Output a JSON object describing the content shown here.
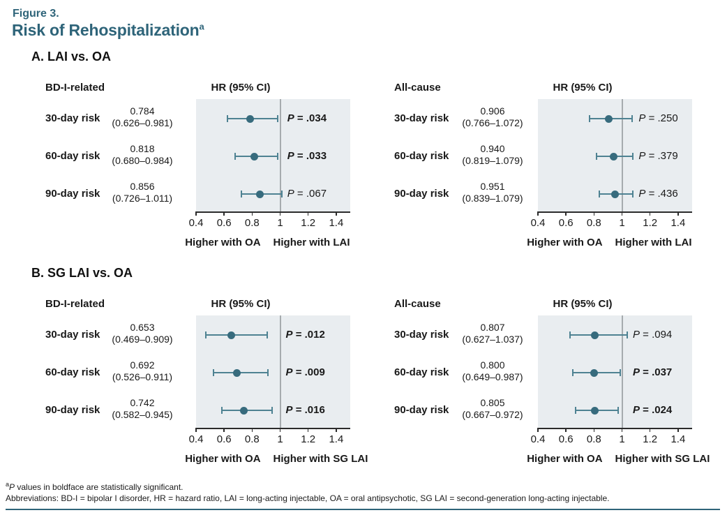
{
  "header": {
    "figure_label": "Figure 3.",
    "title": "Risk of Rehospitalization",
    "title_superscript": "a"
  },
  "colors": {
    "accent_teal": "#2e6479",
    "marker_dot": "#376b7d",
    "ci_line": "#4e8292",
    "plot_background": "#e9edf0",
    "reference_line": "#a6abae",
    "axis": "#2b2b2b",
    "text": "#191919"
  },
  "chart_data": {
    "type": "forest",
    "hr_header": "HR (95% CI)",
    "axis": {
      "domain": [
        0.4,
        1.5
      ],
      "tick_values": [
        0.4,
        0.6,
        0.8,
        1,
        1.2,
        1.4
      ],
      "tick_labels": [
        "0.4",
        "0.6",
        "0.8",
        "1",
        "1.2",
        "1.4"
      ],
      "ref_value": 1
    },
    "panels": [
      {
        "id": "A",
        "heading": "A. LAI vs. OA",
        "direction_left": "Higher with OA",
        "direction_right": "Higher with LAI",
        "groups": [
          {
            "outcome": "BD-I-related",
            "rows": [
              {
                "label": "30-day risk",
                "estimate": "0.784",
                "ci": "(0.626–0.981)",
                "hr": 0.784,
                "lo": 0.626,
                "hi": 0.981,
                "p": "P = .034",
                "significant": true
              },
              {
                "label": "60-day risk",
                "estimate": "0.818",
                "ci": "(0.680–0.984)",
                "hr": 0.818,
                "lo": 0.68,
                "hi": 0.984,
                "p": "P = .033",
                "significant": true
              },
              {
                "label": "90-day risk",
                "estimate": "0.856",
                "ci": "(0.726–1.011)",
                "hr": 0.856,
                "lo": 0.726,
                "hi": 1.011,
                "p": "P = .067",
                "significant": false
              }
            ]
          },
          {
            "outcome": "All-cause",
            "rows": [
              {
                "label": "30-day risk",
                "estimate": "0.906",
                "ci": "(0.766–1.072)",
                "hr": 0.906,
                "lo": 0.766,
                "hi": 1.072,
                "p": "P = .250",
                "significant": false
              },
              {
                "label": "60-day risk",
                "estimate": "0.940",
                "ci": "(0.819–1.079)",
                "hr": 0.94,
                "lo": 0.819,
                "hi": 1.079,
                "p": "P = .379",
                "significant": false
              },
              {
                "label": "90-day risk",
                "estimate": "0.951",
                "ci": "(0.839–1.079)",
                "hr": 0.951,
                "lo": 0.839,
                "hi": 1.079,
                "p": "P = .436",
                "significant": false
              }
            ]
          }
        ]
      },
      {
        "id": "B",
        "heading": "B. SG LAI vs. OA",
        "direction_left": "Higher with OA",
        "direction_right": "Higher with SG LAI",
        "groups": [
          {
            "outcome": "BD-I-related",
            "rows": [
              {
                "label": "30-day risk",
                "estimate": "0.653",
                "ci": "(0.469–0.909)",
                "hr": 0.653,
                "lo": 0.469,
                "hi": 0.909,
                "p": "P = .012",
                "significant": true
              },
              {
                "label": "60-day risk",
                "estimate": "0.692",
                "ci": "(0.526–0.911)",
                "hr": 0.692,
                "lo": 0.526,
                "hi": 0.911,
                "p": "P = .009",
                "significant": true
              },
              {
                "label": "90-day risk",
                "estimate": "0.742",
                "ci": "(0.582–0.945)",
                "hr": 0.742,
                "lo": 0.582,
                "hi": 0.945,
                "p": "P = .016",
                "significant": true
              }
            ]
          },
          {
            "outcome": "All-cause",
            "rows": [
              {
                "label": "30-day risk",
                "estimate": "0.807",
                "ci": "(0.627–1.037)",
                "hr": 0.807,
                "lo": 0.627,
                "hi": 1.037,
                "p": "P = .094",
                "significant": false
              },
              {
                "label": "60-day risk",
                "estimate": "0.800",
                "ci": "(0.649–0.987)",
                "hr": 0.8,
                "lo": 0.649,
                "hi": 0.987,
                "p": "P = .037",
                "significant": true
              },
              {
                "label": "90-day risk",
                "estimate": "0.805",
                "ci": "(0.667–0.972)",
                "hr": 0.805,
                "lo": 0.667,
                "hi": 0.972,
                "p": "P = .024",
                "significant": true
              }
            ]
          }
        ]
      }
    ]
  },
  "footnotes": {
    "note1_sup": "a",
    "note1": "P values in boldface are statistically significant.",
    "note2": "Abbreviations: BD-I = bipolar I disorder, HR = hazard ratio, LAI = long-acting injectable, OA = oral antipsychotic, SG LAI = second-generation long-acting injectable."
  }
}
